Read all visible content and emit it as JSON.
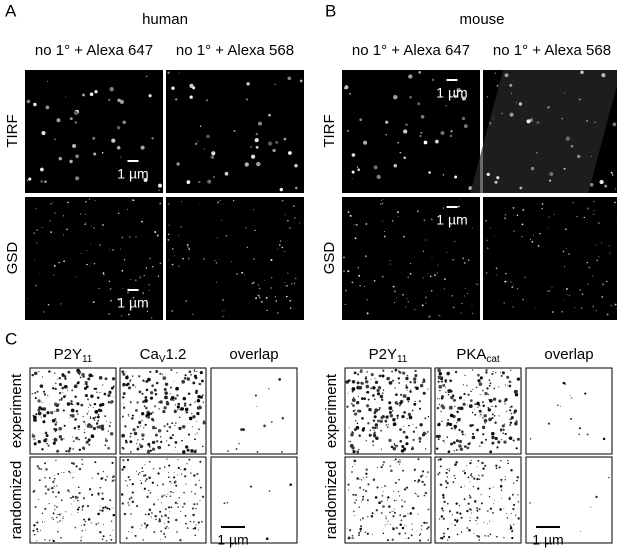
{
  "panel_a": {
    "label": "A",
    "title": "human",
    "columns": [
      "no 1° + Alexa 647",
      "no 1° + Alexa 568"
    ],
    "rows": [
      "TIRF",
      "GSD"
    ],
    "scale_bars": [
      "1 µm",
      "1 µm"
    ]
  },
  "panel_b": {
    "label": "B",
    "title": "mouse",
    "columns": [
      "no 1° + Alexa 647",
      "no 1° + Alexa 568"
    ],
    "rows": [
      "TIRF",
      "GSD"
    ],
    "scale_bars": [
      "1 µm",
      "1 µm"
    ]
  },
  "panel_c": {
    "label": "C",
    "left": {
      "columns": [
        {
          "text": "P2Y",
          "sub": "11"
        },
        {
          "text": "Ca",
          "sub": "V",
          "after": "1.2"
        },
        {
          "text": "overlap"
        }
      ],
      "rows": [
        "experiment",
        "randomized"
      ],
      "scale_bar": "1 µm"
    },
    "right": {
      "columns": [
        {
          "text": "P2Y",
          "sub": "11"
        },
        {
          "text": "PKA",
          "sub": "cat"
        },
        {
          "text": "overlap"
        }
      ],
      "rows": [
        "experiment",
        "randomized"
      ],
      "scale_bar": "1 µm"
    }
  }
}
